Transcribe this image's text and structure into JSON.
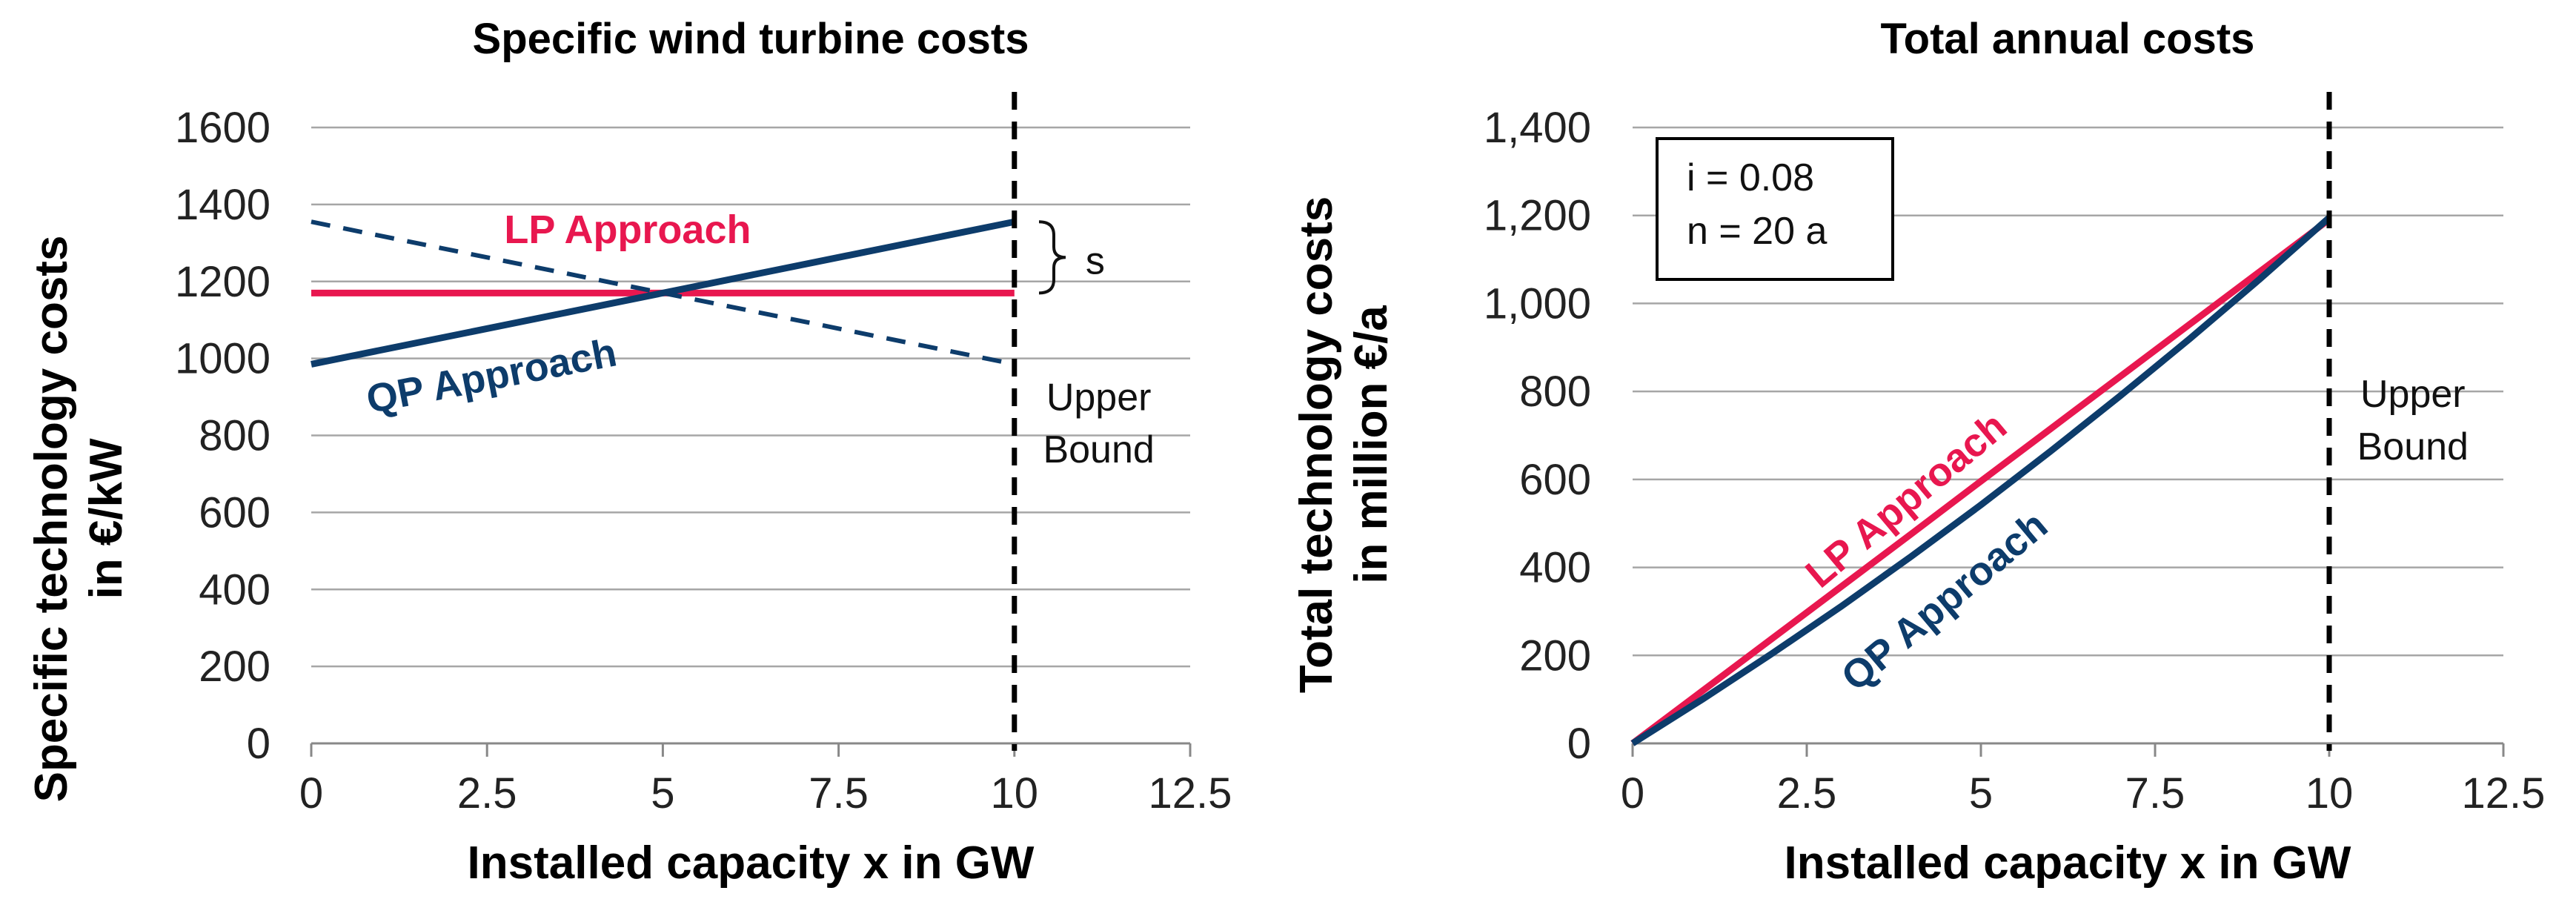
{
  "colors": {
    "lp": "#e8174f",
    "qp": "#0d3c6b",
    "grid": "#a6a6a6",
    "bound": "#000000"
  },
  "chart_data": [
    {
      "type": "line",
      "title": "Specific wind turbine costs",
      "xlabel": "Installed capacity x in GW",
      "ylabel_lines": [
        "Specific technology costs",
        "in €/kW"
      ],
      "xlim": [
        0,
        12.5
      ],
      "ylim": [
        0,
        1600
      ],
      "xticks": [
        0,
        2.5,
        5,
        7.5,
        10,
        12.5
      ],
      "xtick_labels": [
        "0",
        "2.5",
        "5",
        "7.5",
        "10",
        "12.5"
      ],
      "yticks": [
        0,
        200,
        400,
        600,
        800,
        1000,
        1200,
        1400,
        1600
      ],
      "ytick_labels": [
        "0",
        "200",
        "400",
        "600",
        "800",
        "1000",
        "1200",
        "1400",
        "1600"
      ],
      "grid": true,
      "series": [
        {
          "name": "LP Approach",
          "color_key": "lp",
          "style": "solid",
          "x": [
            0,
            10
          ],
          "y": [
            1170,
            1170
          ]
        },
        {
          "name": "QP Approach",
          "color_key": "qp",
          "style": "solid",
          "x": [
            0,
            10
          ],
          "y": [
            985,
            1355
          ]
        },
        {
          "name": "QP Approach (marginal)",
          "color_key": "qp",
          "style": "dashed",
          "x": [
            0,
            10
          ],
          "y": [
            1355,
            985
          ]
        }
      ],
      "labels": [
        {
          "text": "LP Approach",
          "color_key": "lp",
          "x": 4.5,
          "y": 1300,
          "angle": 0
        },
        {
          "text": "QP Approach",
          "color_key": "qp",
          "x": 2.6,
          "y": 920,
          "angle": -11
        }
      ],
      "bound": {
        "x": 10,
        "label_lines": [
          "Upper",
          "Bound"
        ],
        "label_x": 11.2,
        "label_y": [
          865,
          730
        ]
      },
      "brace": {
        "x": 10.35,
        "y_top": 1355,
        "y_bottom": 1170,
        "label": "s",
        "label_x": 11.15
      }
    },
    {
      "type": "line",
      "title": "Total annual costs",
      "xlabel": "Installed capacity x in GW",
      "ylabel_lines": [
        "Total technology costs",
        "in million €/a"
      ],
      "xlim": [
        0,
        12.5
      ],
      "ylim": [
        0,
        1400
      ],
      "xticks": [
        0,
        2.5,
        5,
        7.5,
        10,
        12.5
      ],
      "xtick_labels": [
        "0",
        "2.5",
        "5",
        "7.5",
        "10",
        "12.5"
      ],
      "yticks": [
        0,
        200,
        400,
        600,
        800,
        1000,
        1200,
        1400
      ],
      "ytick_labels": [
        "0",
        "200",
        "400",
        "600",
        "800",
        "1,000",
        "1,200",
        "1,400"
      ],
      "grid": true,
      "series": [
        {
          "name": "LP Approach",
          "color_key": "lp",
          "style": "solid",
          "x": [
            0,
            1,
            2,
            3,
            4,
            5,
            6,
            7,
            8,
            9,
            10
          ],
          "y": [
            0,
            119,
            238,
            357,
            476,
            596,
            715,
            834,
            953,
            1072,
            1191
          ]
        },
        {
          "name": "QP Approach",
          "color_key": "qp",
          "style": "solid",
          "x": [
            0,
            1,
            2,
            3,
            4,
            5,
            6,
            7,
            8,
            9,
            10
          ],
          "y": [
            0,
            100,
            204,
            312,
            425,
            542,
            664,
            790,
            920,
            1055,
            1195
          ]
        }
      ],
      "labels": [
        {
          "text": "LP Approach",
          "color_key": "lp",
          "x": 4.05,
          "y": 530,
          "angle": -40
        },
        {
          "text": "QP Approach",
          "color_key": "qp",
          "x": 4.6,
          "y": 300,
          "angle": -40
        }
      ],
      "bound": {
        "x": 10,
        "label_lines": [
          "Upper",
          "Bound"
        ],
        "label_x": 11.2,
        "label_y": [
          765,
          645
        ]
      },
      "parameters": [
        "i = 0.08",
        "n = 20 a"
      ]
    }
  ]
}
